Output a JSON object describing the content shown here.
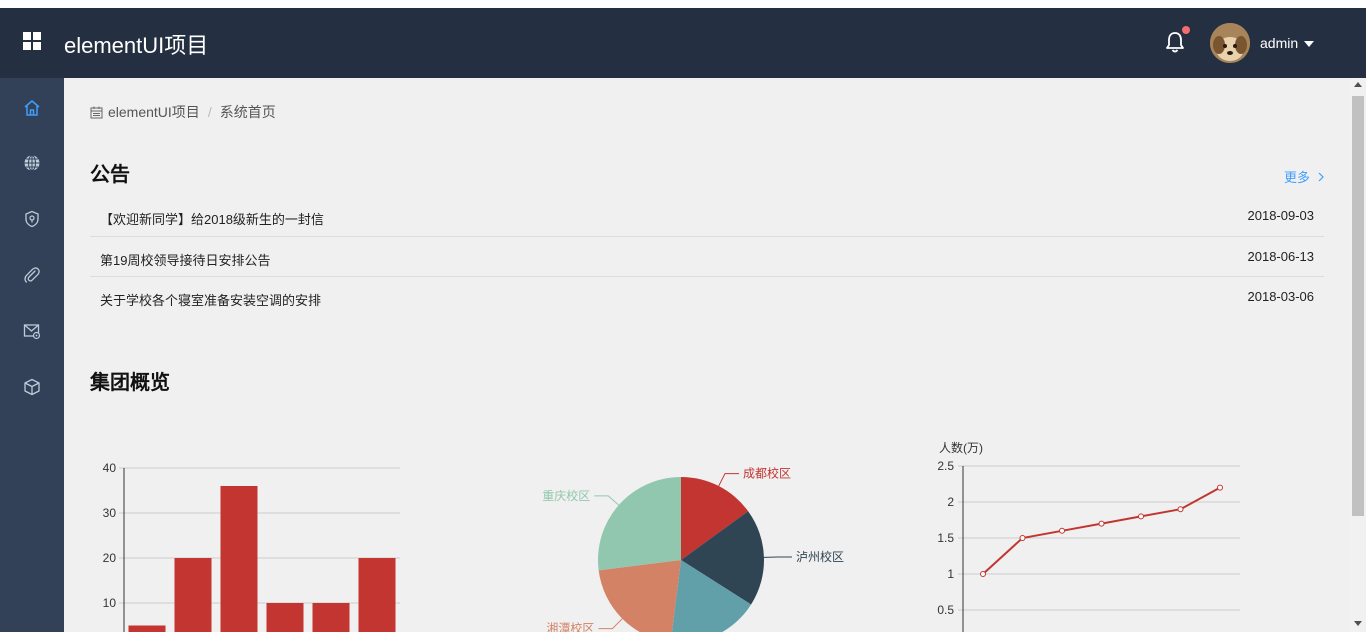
{
  "header": {
    "app_title": "elementUI项目",
    "user_name": "admin",
    "menu_icon": "grid-icon",
    "notification_icon": "bell-icon",
    "notification_dot_color": "#f56c6c",
    "background_color": "#242f42"
  },
  "sidebar": {
    "background_color": "#324157",
    "active_color": "#409eff",
    "items": [
      {
        "icon": "home-icon",
        "active": true
      },
      {
        "icon": "globe-icon",
        "active": false
      },
      {
        "icon": "location-shield-icon",
        "active": false
      },
      {
        "icon": "paperclip-icon",
        "active": false
      },
      {
        "icon": "mail-settings-icon",
        "active": false
      },
      {
        "icon": "box-icon",
        "active": false
      }
    ]
  },
  "breadcrumb": {
    "icon": "calendar-icon",
    "items": [
      "elementUI项目",
      "系统首页"
    ],
    "separator": "/"
  },
  "notices": {
    "title": "公告",
    "more_label": "更多",
    "items": [
      {
        "title": "【欢迎新同学】给2018级新生的一封信",
        "date": "2018-09-03"
      },
      {
        "title": "第19周校领导接待日安排公告",
        "date": "2018-06-13"
      },
      {
        "title": "关于学校各个寝室准备安装空调的安排",
        "date": "2018-03-06"
      }
    ]
  },
  "overview": {
    "title": "集团概览"
  },
  "chart_data": [
    {
      "type": "bar",
      "values": [
        5,
        20,
        36,
        10,
        10,
        20
      ],
      "y_ticks": [
        "10",
        "20",
        "30",
        "40"
      ],
      "ylim": [
        0,
        40
      ],
      "color": "#c23531",
      "grid": true
    },
    {
      "type": "pie",
      "slices": [
        {
          "name": "成都校区",
          "value": 15,
          "color": "#c23531"
        },
        {
          "name": "泸州校区",
          "value": 19,
          "color": "#2f4554"
        },
        {
          "name": "",
          "value": 18,
          "color": "#61a0a8"
        },
        {
          "name": "湘潭校区",
          "value": 21,
          "color": "#d48265"
        },
        {
          "name": "重庆校区",
          "value": 27,
          "color": "#91c7ae"
        }
      ]
    },
    {
      "type": "line",
      "ylabel": "人数(万)",
      "values": [
        1.0,
        1.5,
        1.6,
        1.7,
        1.8,
        1.9,
        2.2
      ],
      "y_ticks": [
        "0.5",
        "1",
        "1.5",
        "2",
        "2.5"
      ],
      "ylim": [
        0,
        2.5
      ],
      "color": "#c23531",
      "grid": true
    }
  ]
}
